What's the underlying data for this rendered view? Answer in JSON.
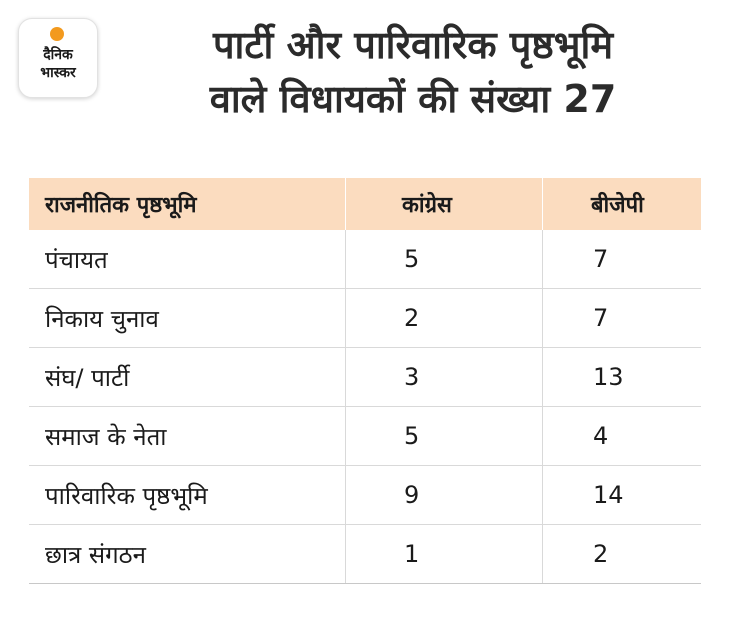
{
  "logo": {
    "line1": "दैनिक",
    "line2": "भास्कर",
    "accent_color": "#f39a1e"
  },
  "title": {
    "line1": "पार्टी और पारिवारिक पृष्ठभूमि",
    "line2": "वाले विधायकों की संख्या 27"
  },
  "table": {
    "header_bg": "#fbdcbf",
    "headers": [
      "राजनीतिक पृष्ठभूमि",
      "कांग्रेस",
      "बीजेपी"
    ],
    "rows": [
      [
        "पंचायत",
        "5",
        "7"
      ],
      [
        "निकाय चुनाव",
        "2",
        "7"
      ],
      [
        "संघ/ पार्टी",
        "3",
        "13"
      ],
      [
        "समाज के नेता",
        "5",
        "4"
      ],
      [
        "पारिवारिक पृष्ठभूमि",
        "9",
        "14"
      ],
      [
        "छात्र संगठन",
        "1",
        "2"
      ]
    ]
  }
}
